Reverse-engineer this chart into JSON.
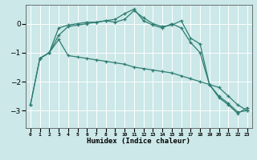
{
  "xlabel": "Humidex (Indice chaleur)",
  "background_color": "#cce8e8",
  "grid_color": "#ffffff",
  "line_color": "#2e7d72",
  "x_ticks": [
    0,
    1,
    2,
    3,
    4,
    5,
    6,
    7,
    8,
    9,
    10,
    11,
    12,
    13,
    14,
    15,
    16,
    17,
    18,
    19,
    20,
    21,
    22,
    23
  ],
  "ylim": [
    -3.6,
    0.65
  ],
  "xlim": [
    -0.5,
    23.5
  ],
  "line1_x": [
    0,
    1,
    2,
    3,
    4,
    5,
    6,
    7,
    8,
    9,
    10,
    11,
    12,
    13,
    14,
    15,
    16,
    17,
    18,
    19,
    20,
    21,
    22,
    23
  ],
  "line1_y": [
    -2.8,
    -1.2,
    -1.0,
    -0.15,
    -0.05,
    0.0,
    0.05,
    0.05,
    0.1,
    0.05,
    0.15,
    0.45,
    0.2,
    0.0,
    -0.1,
    -0.05,
    0.1,
    -0.5,
    -0.7,
    -2.1,
    -2.5,
    -2.75,
    -3.05,
    -3.0
  ],
  "line2_x": [
    0,
    1,
    2,
    3,
    4,
    5,
    6,
    7,
    8,
    9,
    10,
    11,
    12,
    13,
    14,
    15,
    16,
    17,
    18,
    19,
    20,
    21,
    22,
    23
  ],
  "line2_y": [
    -2.8,
    -1.2,
    -1.0,
    -0.4,
    -0.1,
    -0.05,
    0.0,
    0.05,
    0.1,
    0.15,
    0.35,
    0.5,
    0.1,
    -0.05,
    -0.15,
    0.0,
    -0.15,
    -0.65,
    -1.0,
    -2.1,
    -2.55,
    -2.8,
    -3.1,
    -2.9
  ],
  "line3_x": [
    1,
    2,
    3,
    4,
    5,
    6,
    7,
    8,
    9,
    10,
    11,
    12,
    13,
    14,
    15,
    16,
    17,
    18,
    19,
    20,
    21,
    22,
    23
  ],
  "line3_y": [
    -1.2,
    -1.0,
    -0.55,
    -1.1,
    -1.15,
    -1.2,
    -1.25,
    -1.3,
    -1.35,
    -1.4,
    -1.5,
    -1.55,
    -1.6,
    -1.65,
    -1.7,
    -1.8,
    -1.9,
    -2.0,
    -2.1,
    -2.2,
    -2.5,
    -2.8,
    -3.0
  ]
}
